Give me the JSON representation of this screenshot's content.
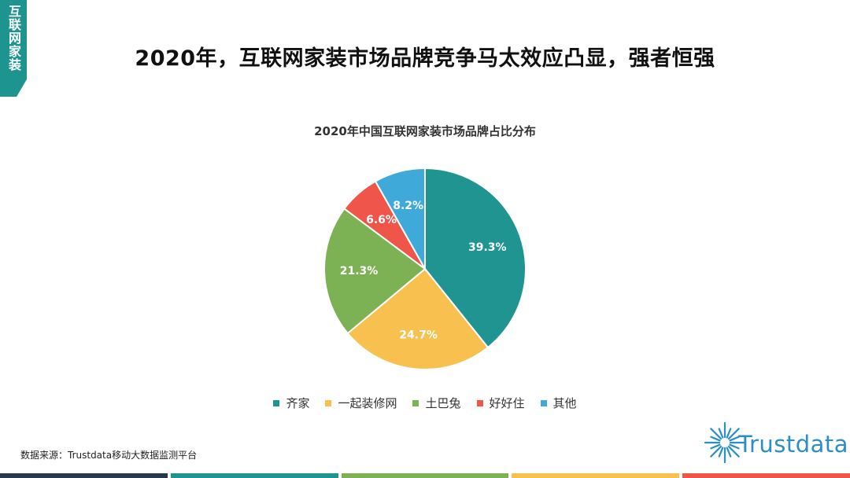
{
  "side_tab": {
    "text": "互联网家装"
  },
  "page_title": "2020年，互联网家装市场品牌竞争马太效应凸显，强者恒强",
  "chart_data": {
    "type": "pie",
    "title": "2020年中国互联网家装市场品牌占比分布",
    "series": [
      {
        "name": "齐家",
        "value": 39.3,
        "label": "39.3%",
        "color": "#1f9490"
      },
      {
        "name": "一起装修网",
        "value": 24.7,
        "label": "24.7%",
        "color": "#f8c14f"
      },
      {
        "name": "土巴兔",
        "value": 21.3,
        "label": "21.3%",
        "color": "#7db254"
      },
      {
        "name": "好好住",
        "value": 6.6,
        "label": "6.6%",
        "color": "#ef5548"
      },
      {
        "name": "其他",
        "value": 8.2,
        "label": "8.2%",
        "color": "#3fa9d9"
      }
    ],
    "legend_placement": "bottom"
  },
  "source": "数据来源：Trustdata移动大数据监测平台",
  "logo": {
    "text": "Trustdata",
    "color": "#2a8fc7"
  },
  "bottom_bar_colors": [
    "#263849",
    "#1e9490",
    "#7db254",
    "#f8c14f",
    "#ef5548"
  ]
}
